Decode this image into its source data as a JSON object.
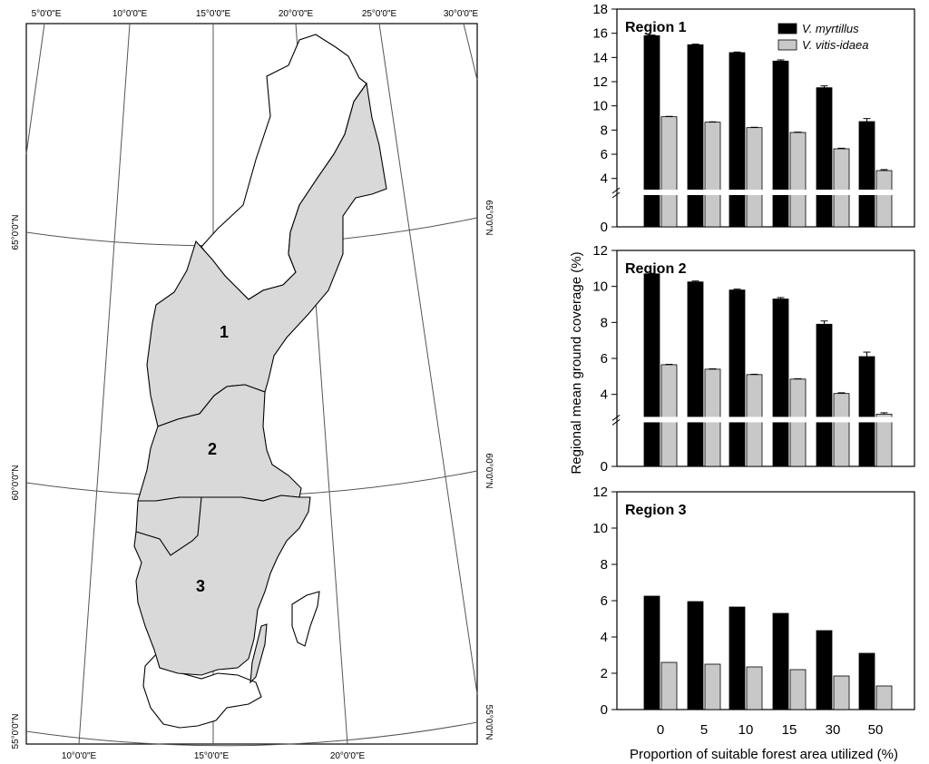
{
  "map": {
    "top_lon_labels": [
      "5°0'0\"E",
      "10°0'0\"E",
      "15°0'0\"E",
      "20°0'0\"E",
      "25°0'0\"E",
      "30°0'0\"E"
    ],
    "bottom_lon_labels": [
      "10°0'0\"E",
      "15°0'0\"E",
      "20°0'0\"E"
    ],
    "lat_labels": [
      "65°0'0\"N",
      "60°0'0\"N",
      "55°0'0\"N"
    ],
    "region_labels": [
      "1",
      "2",
      "3"
    ],
    "colors": {
      "region_fill": "#d9d9d9",
      "land_fill": "#ffffff",
      "outline": "#000000",
      "graticule": "#555555"
    }
  },
  "chart_data": [
    {
      "type": "bar",
      "title": "Region 1",
      "categories": [
        "0",
        "5",
        "10",
        "15",
        "30",
        "50"
      ],
      "series": [
        {
          "name": "V. myrtillus",
          "color": "#000000",
          "values": [
            15.8,
            15.05,
            14.4,
            13.7,
            11.5,
            8.7
          ],
          "errors": [
            0.05,
            0.05,
            0.05,
            0.1,
            0.15,
            0.25
          ]
        },
        {
          "name": "V. vitis-idaea",
          "color": "#c8c8c8",
          "values": [
            9.1,
            8.65,
            8.2,
            7.8,
            6.45,
            4.65
          ],
          "errors": [
            0.03,
            0.03,
            0.03,
            0.03,
            0.05,
            0.08
          ]
        }
      ],
      "ylim": [
        0,
        18
      ],
      "yticks": [
        "0",
        "4",
        "6",
        "8",
        "10",
        "12",
        "14",
        "16",
        "18"
      ],
      "axis_break": true,
      "legend": "top-right"
    },
    {
      "type": "bar",
      "title": "Region 2",
      "categories": [
        "0",
        "5",
        "10",
        "15",
        "30",
        "50"
      ],
      "series": [
        {
          "name": "V. myrtillus",
          "color": "#000000",
          "values": [
            10.7,
            10.25,
            9.8,
            9.3,
            7.9,
            6.1
          ],
          "errors": [
            0.03,
            0.05,
            0.05,
            0.08,
            0.18,
            0.25
          ]
        },
        {
          "name": "V. vitis-idaea",
          "color": "#c8c8c8",
          "values": [
            5.65,
            5.4,
            5.1,
            4.85,
            4.05,
            2.9
          ],
          "errors": [
            0.02,
            0.02,
            0.02,
            0.02,
            0.04,
            0.08
          ]
        }
      ],
      "ylim": [
        0,
        12
      ],
      "yticks": [
        "0",
        "4",
        "6",
        "8",
        "10",
        "12"
      ],
      "axis_break": true
    },
    {
      "type": "bar",
      "title": "Region 3",
      "categories": [
        "0",
        "5",
        "10",
        "15",
        "30",
        "50"
      ],
      "series": [
        {
          "name": "V. myrtillus",
          "color": "#000000",
          "values": [
            6.25,
            5.95,
            5.65,
            5.3,
            4.35,
            3.1
          ],
          "errors": [
            0,
            0,
            0,
            0,
            0,
            0
          ]
        },
        {
          "name": "V. vitis-idaea",
          "color": "#c8c8c8",
          "values": [
            2.6,
            2.5,
            2.35,
            2.2,
            1.85,
            1.3
          ],
          "errors": [
            0,
            0,
            0,
            0,
            0,
            0
          ]
        }
      ],
      "ylim": [
        0,
        12
      ],
      "yticks": [
        "0",
        "2",
        "4",
        "6",
        "8",
        "10",
        "12"
      ],
      "axis_break": false
    }
  ],
  "shared": {
    "ylabel": "Regional mean ground coverage (%)",
    "xlabel": "Proportion of suitable forest area utilized (%)"
  }
}
